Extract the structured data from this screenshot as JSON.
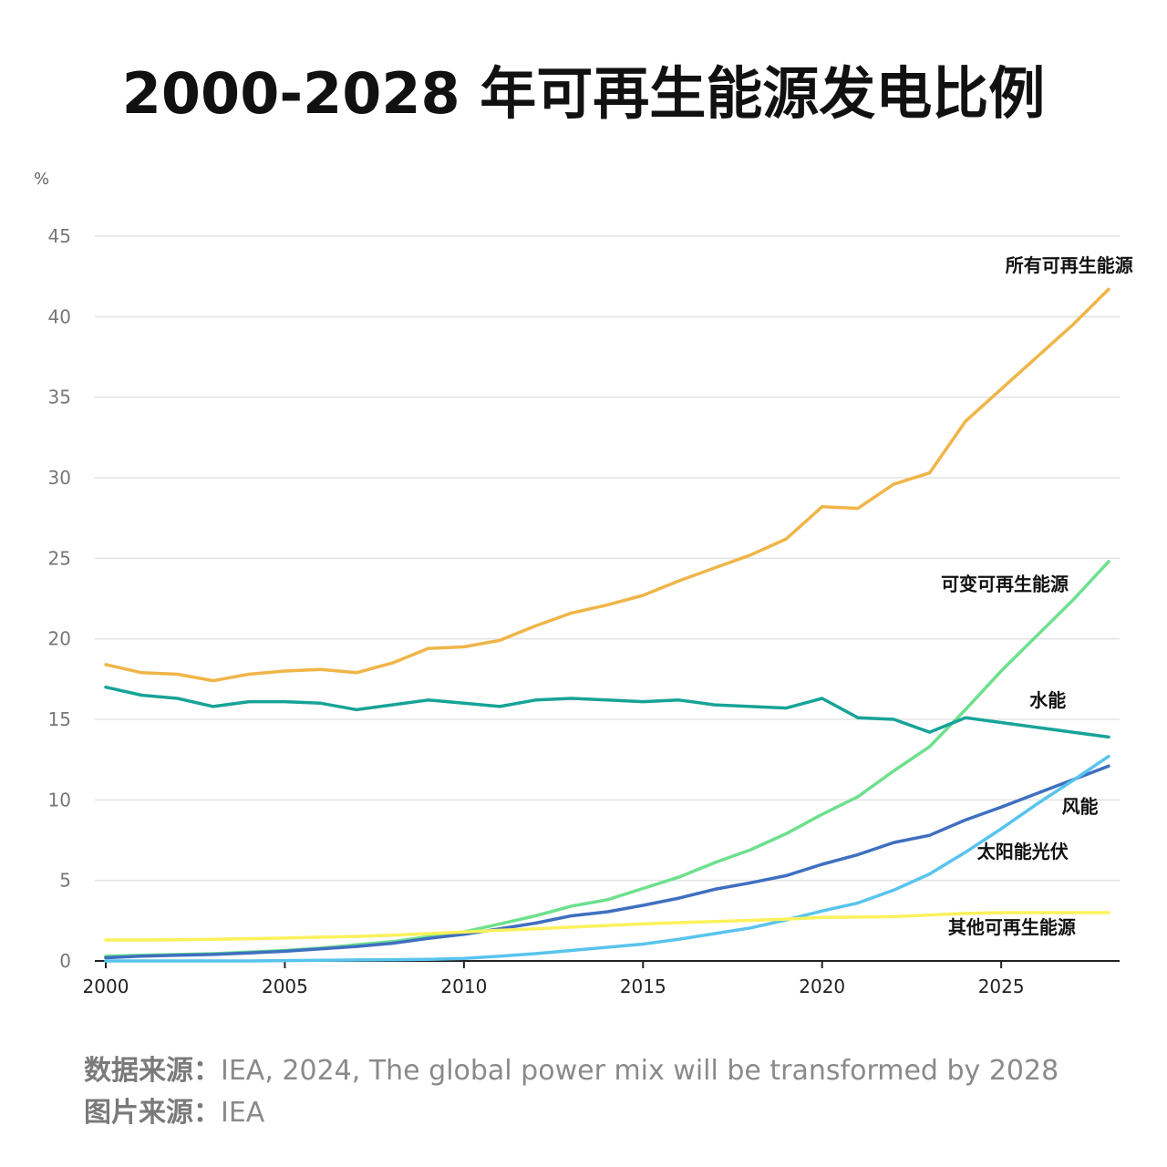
{
  "page": {
    "title": "2000-2028 年可再生能源发电比例"
  },
  "footer": {
    "source_label": "数据来源：",
    "source_text": "IEA, 2024, The global power mix will be transformed by 2028",
    "image_label": "图片来源：",
    "image_text": "IEA"
  },
  "chart_data": {
    "type": "line",
    "title": "2000-2028 年可再生能源发电比例",
    "ylabel": "%",
    "xlabel": "",
    "xlim": [
      2000,
      2028
    ],
    "ylim": [
      0,
      45
    ],
    "yticks": [
      0,
      5,
      10,
      15,
      20,
      25,
      30,
      35,
      40,
      45
    ],
    "xticks": [
      2000,
      2005,
      2010,
      2015,
      2020,
      2025
    ],
    "grid": true,
    "x": [
      2000,
      2001,
      2002,
      2003,
      2004,
      2005,
      2006,
      2007,
      2008,
      2009,
      2010,
      2011,
      2012,
      2013,
      2014,
      2015,
      2016,
      2017,
      2018,
      2019,
      2020,
      2021,
      2022,
      2023,
      2024,
      2025,
      2026,
      2027,
      2028
    ],
    "series": [
      {
        "name": "所有可再生能源",
        "color": "#f0b548",
        "values": [
          18.4,
          17.9,
          17.8,
          17.4,
          17.8,
          18.0,
          18.1,
          17.9,
          18.5,
          19.4,
          19.5,
          19.9,
          20.8,
          21.6,
          22.1,
          22.7,
          23.6,
          24.4,
          25.2,
          26.2,
          28.2,
          28.1,
          29.6,
          30.3,
          33.5,
          35.5,
          37.5,
          39.5,
          41.7
        ]
      },
      {
        "name": "可变可再生能源",
        "color": "#6de08e",
        "values": [
          0.3,
          0.35,
          0.4,
          0.45,
          0.55,
          0.65,
          0.8,
          1.0,
          1.2,
          1.5,
          1.8,
          2.3,
          2.8,
          3.4,
          3.8,
          4.5,
          5.2,
          6.1,
          6.9,
          7.9,
          9.1,
          10.2,
          11.8,
          13.3,
          15.6,
          18.0,
          20.2,
          22.4,
          24.8
        ]
      },
      {
        "name": "水能",
        "color": "#17a398",
        "values": [
          17.0,
          16.5,
          16.3,
          15.8,
          16.1,
          16.1,
          16.0,
          15.6,
          15.9,
          16.2,
          16.0,
          15.8,
          16.2,
          16.3,
          16.2,
          16.1,
          16.2,
          15.9,
          15.8,
          15.7,
          16.3,
          15.1,
          15.0,
          14.2,
          15.1,
          14.8,
          14.5,
          14.2,
          13.9
        ]
      },
      {
        "name": "风能",
        "color": "#3f6fc0",
        "values": [
          0.2,
          0.3,
          0.35,
          0.4,
          0.5,
          0.6,
          0.75,
          0.9,
          1.1,
          1.4,
          1.65,
          2.0,
          2.35,
          2.8,
          3.05,
          3.45,
          3.9,
          4.45,
          4.85,
          5.3,
          6.0,
          6.6,
          7.35,
          7.8,
          8.75,
          9.55,
          10.4,
          11.25,
          12.1
        ]
      },
      {
        "name": "太阳能光伏",
        "color": "#58c4ee",
        "values": [
          0.0,
          0.0,
          0.0,
          0.0,
          0.0,
          0.02,
          0.04,
          0.06,
          0.08,
          0.1,
          0.15,
          0.3,
          0.45,
          0.65,
          0.85,
          1.05,
          1.35,
          1.7,
          2.05,
          2.55,
          3.1,
          3.6,
          4.4,
          5.4,
          6.75,
          8.2,
          9.75,
          11.2,
          12.7
        ]
      },
      {
        "name": "其他可再生能源",
        "color": "#fbf15c",
        "values": [
          1.3,
          1.3,
          1.32,
          1.35,
          1.38,
          1.42,
          1.48,
          1.52,
          1.6,
          1.7,
          1.8,
          1.9,
          2.0,
          2.1,
          2.2,
          2.3,
          2.38,
          2.45,
          2.52,
          2.6,
          2.7,
          2.72,
          2.75,
          2.85,
          2.95,
          3.0,
          3.0,
          3.0,
          3.0
        ]
      }
    ],
    "line_labels": [
      {
        "series": "所有可再生能源",
        "text": "所有可再生能源",
        "at": [
          2026.9,
          42.8
        ]
      },
      {
        "series": "可变可再生能源",
        "text": "可变可再生能源",
        "at": [
          2025.1,
          23.0
        ]
      },
      {
        "series": "水能",
        "text": "水能",
        "at": [
          2026.3,
          15.8
        ]
      },
      {
        "series": "风能",
        "text": "风能",
        "at": [
          2027.2,
          9.2
        ]
      },
      {
        "series": "太阳能光伏",
        "text": "太阳能光伏",
        "at": [
          2025.6,
          6.4
        ]
      },
      {
        "series": "其他可再生能源",
        "text": "其他可再生能源",
        "at": [
          2025.3,
          1.7
        ]
      }
    ]
  }
}
